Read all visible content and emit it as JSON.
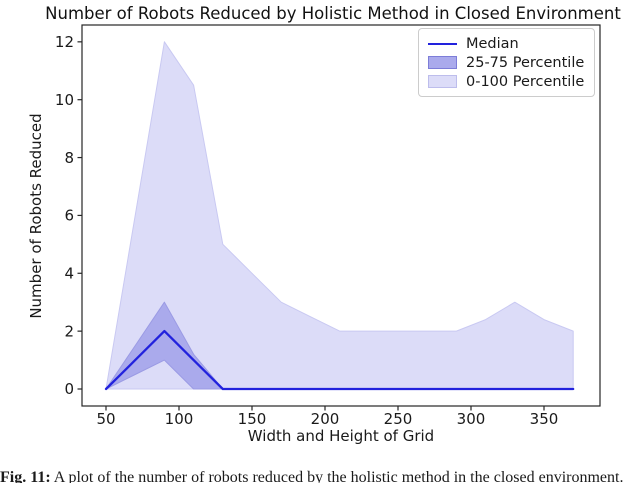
{
  "chart_data": {
    "type": "line",
    "title": "Number of Robots Reduced by Holistic Method in Closed Environment",
    "xlabel": "Width and Height of Grid",
    "ylabel": "Number of Robots Reduced",
    "x": [
      50,
      70,
      90,
      110,
      130,
      150,
      170,
      190,
      210,
      230,
      250,
      270,
      290,
      310,
      330,
      350,
      370
    ],
    "series": [
      {
        "name": "Median",
        "values": [
          0,
          1,
          2,
          1,
          0,
          0,
          0,
          0,
          0,
          0,
          0,
          0,
          0,
          0,
          0,
          0,
          0
        ]
      },
      {
        "name": "25-75 Percentile",
        "upper": [
          0,
          1.5,
          3,
          1.2,
          0,
          0,
          0,
          0,
          0,
          0,
          0,
          0,
          0,
          0,
          0,
          0,
          0
        ],
        "lower": [
          0,
          0.5,
          1,
          0,
          0,
          0,
          0,
          0,
          0,
          0,
          0,
          0,
          0,
          0,
          0,
          0,
          0
        ]
      },
      {
        "name": "0-100 Percentile",
        "upper": [
          0,
          6,
          12,
          10.5,
          5,
          4,
          3,
          2.5,
          2,
          2,
          2,
          2,
          2,
          2.4,
          3,
          2.4,
          2
        ],
        "lower": [
          0,
          0,
          0,
          0,
          0,
          0,
          0,
          0,
          0,
          0,
          0,
          0,
          0,
          0,
          0,
          0,
          0
        ]
      }
    ],
    "x_ticks": [
      50,
      100,
      150,
      200,
      250,
      300,
      350
    ],
    "y_ticks": [
      0,
      2,
      4,
      6,
      8,
      10,
      12
    ],
    "xlim": [
      34,
      386
    ],
    "ylim": [
      -0.6,
      12.6
    ],
    "grid": false,
    "legend": {
      "position": "upper right",
      "entries": [
        "Median",
        "25-75 Percentile",
        "0-100 Percentile"
      ]
    },
    "colors": {
      "median": "#2222dd",
      "band_25_75": "#aaaaec",
      "band_0_100": "#dcdcf8"
    }
  },
  "caption": {
    "label": "Fig. 11:",
    "text": "A plot of the number of robots reduced by the holistic method in the closed environment."
  }
}
